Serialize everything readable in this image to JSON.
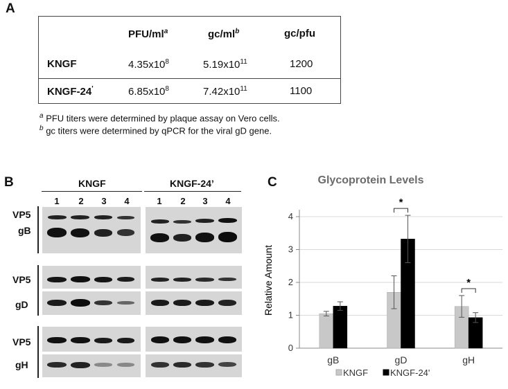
{
  "panel_a": {
    "letter": "A",
    "headers": [
      "PFU/ml",
      "gc/ml",
      "gc/pfu"
    ],
    "header_sups": [
      "a",
      "b",
      ""
    ],
    "rows": [
      {
        "label": "KNGF",
        "label_sup": "",
        "pfu_base": "4.35x10",
        "pfu_exp": "8",
        "gc_base": "5.19x10",
        "gc_exp": "11",
        "ratio": "1200"
      },
      {
        "label": "KNGF-24",
        "label_sup": "'",
        "pfu_base": "6.85x10",
        "pfu_exp": "8",
        "gc_base": "7.42x10",
        "gc_exp": "11",
        "ratio": "1100"
      }
    ],
    "footnotes": [
      {
        "sup": "a",
        "text": "PFU titers were determined by plaque assay on Vero cells."
      },
      {
        "sup": "b",
        "text": "gc titers were determined by qPCR for the viral gD gene."
      }
    ]
  },
  "panel_b": {
    "letter": "B",
    "groups": [
      "KNGF",
      "KNGF-24’"
    ],
    "lanes": [
      "1",
      "2",
      "3",
      "4",
      "1",
      "2",
      "3",
      "4"
    ],
    "blot_labels": [
      "VP5",
      "gB",
      "VP5",
      "gD",
      "VP5",
      "gH"
    ]
  },
  "panel_c": {
    "letter": "C",
    "colors": {
      "kngf": "#c8c8c8",
      "kngf24": "#000000",
      "axis": "#888888",
      "grid": "#d9d9d9",
      "title": "#6b6b6b"
    },
    "chart_data": {
      "type": "bar",
      "title": "Glycoprotein Levels",
      "xlabel": "",
      "ylabel": "Relative Amount",
      "ylim": [
        0,
        4
      ],
      "yticks": [
        "0",
        "1",
        "2",
        "3",
        "4"
      ],
      "categories": [
        "gB",
        "gD",
        "gH"
      ],
      "series": [
        {
          "name": "KNGF",
          "values": [
            1.05,
            1.7,
            1.27
          ],
          "errors": [
            0.07,
            0.5,
            0.33
          ]
        },
        {
          "name": "KNGF-24'",
          "values": [
            1.28,
            3.32,
            0.93
          ],
          "errors": [
            0.13,
            0.72,
            0.15
          ]
        }
      ],
      "significance": [
        {
          "category": "gD",
          "label": "*"
        },
        {
          "category": "gH",
          "label": "*"
        }
      ],
      "grid": true,
      "legend": "bottom"
    }
  }
}
